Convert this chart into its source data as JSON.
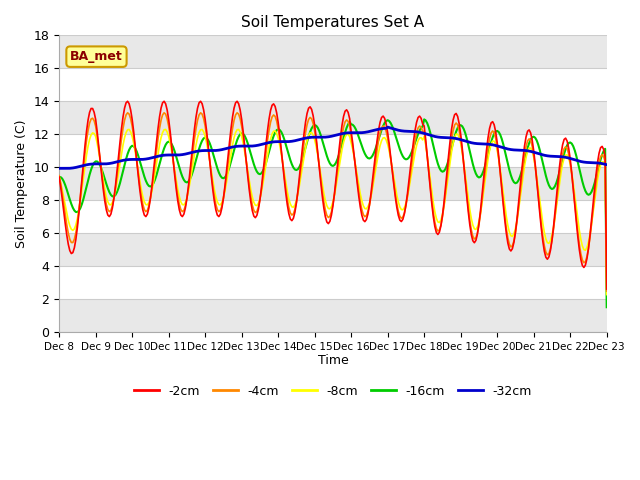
{
  "title": "Soil Temperatures Set A",
  "xlabel": "Time",
  "ylabel": "Soil Temperature (C)",
  "ylim": [
    0,
    18
  ],
  "background_color": "#ffffff",
  "plot_bg_color": "#ffffff",
  "grid_color": "#e0e0e0",
  "annotation_text": "BA_met",
  "annotation_bg": "#ffff99",
  "annotation_border": "#cc9900",
  "series": {
    "-2cm": {
      "color": "#ff0000",
      "lw": 1.2
    },
    "-4cm": {
      "color": "#ff8800",
      "lw": 1.2
    },
    "-8cm": {
      "color": "#ffff00",
      "lw": 1.2
    },
    "-16cm": {
      "color": "#00cc00",
      "lw": 1.5
    },
    "-32cm": {
      "color": "#0000cc",
      "lw": 2.0
    }
  },
  "xtick_labels": [
    "Dec 8",
    "Dec 9",
    "Dec 10",
    "Dec 11",
    "Dec 12",
    "Dec 13",
    "Dec 14",
    "Dec 15",
    "Dec 16",
    "Dec 17",
    "Dec 18",
    "Dec 19",
    "Dec 20",
    "Dec 21",
    "Dec 22",
    "Dec 23"
  ],
  "ytick_labels": [
    "0",
    "2",
    "4",
    "6",
    "8",
    "10",
    "12",
    "14",
    "16",
    "18"
  ]
}
